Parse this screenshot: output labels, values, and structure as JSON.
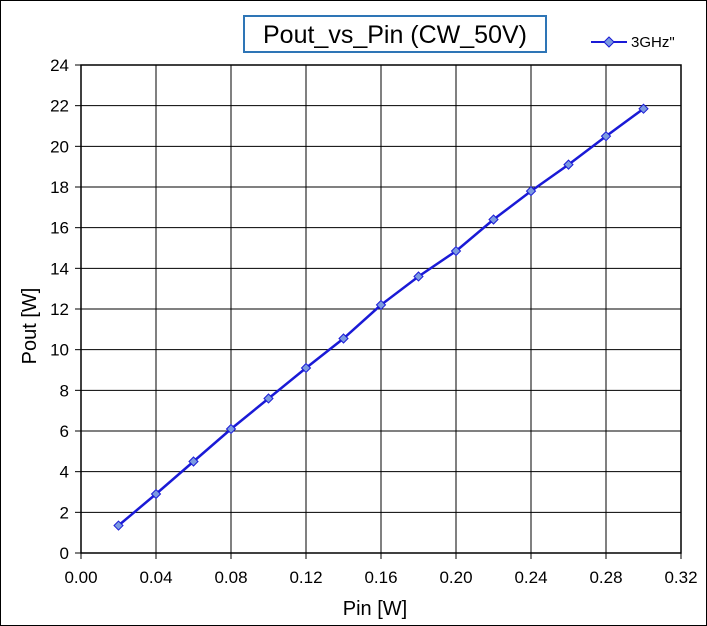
{
  "colors": {
    "series": "#1a1ad6",
    "marker": "#7b9ae0",
    "title_border": "#2e75b6",
    "grid": "#000000"
  },
  "chart_data": {
    "type": "line",
    "title": "Pout_vs_Pin  (CW_50V)",
    "xlabel": "Pin [W]",
    "ylabel": "Pout [W]",
    "xlim": [
      0,
      0.32
    ],
    "ylim": [
      0,
      24
    ],
    "xticks": [
      0,
      0.04,
      0.08,
      0.12,
      0.16,
      0.2,
      0.24,
      0.28,
      0.32
    ],
    "xtick_labels": [
      "0.00",
      "0.04",
      "0.08",
      "0.12",
      "0.16",
      "0.20",
      "0.24",
      "0.28",
      "0.32"
    ],
    "yticks": [
      0,
      2,
      4,
      6,
      8,
      10,
      12,
      14,
      16,
      18,
      20,
      22,
      24
    ],
    "ytick_labels": [
      "0",
      "2",
      "4",
      "6",
      "8",
      "10",
      "12",
      "14",
      "16",
      "18",
      "20",
      "22",
      "24"
    ],
    "grid": true,
    "legend_position": "top-right",
    "series": [
      {
        "name": "3GHz\"",
        "x": [
          0.02,
          0.04,
          0.06,
          0.08,
          0.1,
          0.12,
          0.14,
          0.16,
          0.18,
          0.2,
          0.22,
          0.24,
          0.26,
          0.28,
          0.3
        ],
        "y": [
          1.35,
          2.9,
          4.5,
          6.1,
          7.6,
          9.1,
          10.55,
          12.2,
          13.6,
          14.85,
          16.4,
          17.8,
          19.1,
          20.5,
          21.85
        ]
      }
    ]
  }
}
